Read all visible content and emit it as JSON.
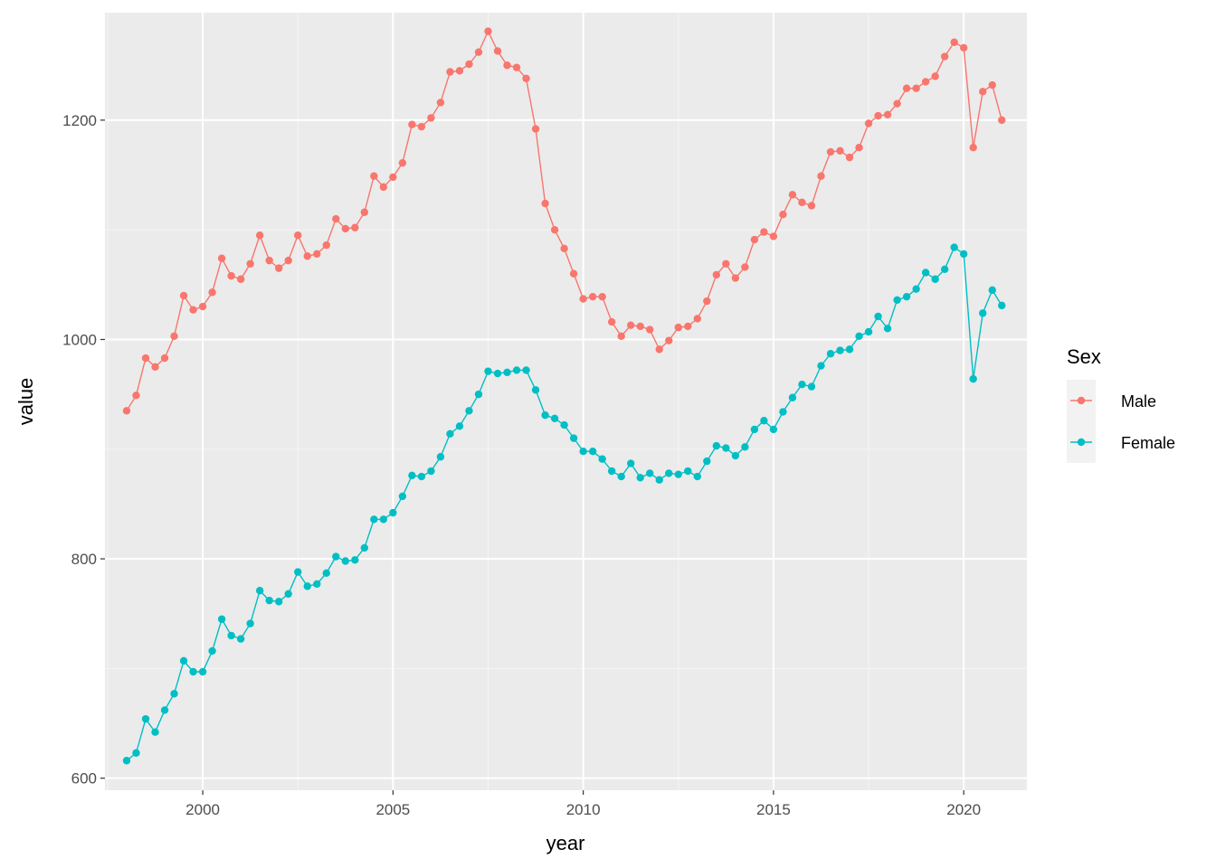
{
  "colors": {
    "panel_background": "#ebebeb",
    "grid_major": "#ffffff",
    "grid_minor": "#f5f5f5",
    "male": "#f8766d",
    "female": "#00bfc4"
  },
  "chart_data": {
    "type": "line",
    "title": "",
    "xlabel": "year",
    "ylabel": "value",
    "xlim": [
      1997.43,
      2021.66
    ],
    "ylim": [
      589,
      1298
    ],
    "x_ticks": [
      2000,
      2005,
      2010,
      2015,
      2020
    ],
    "x_tick_labels": [
      "2000",
      "2005",
      "2010",
      "2015",
      "2020"
    ],
    "y_ticks": [
      600,
      800,
      1000,
      1200
    ],
    "y_tick_labels": [
      "600",
      "800",
      "1000",
      "1200"
    ],
    "grid": true,
    "markers": true,
    "legend": {
      "title": "Sex",
      "position": "right",
      "labels": [
        "Male",
        "Female"
      ]
    },
    "x": [
      1998,
      1998.25,
      1998.5,
      1998.75,
      1999,
      1999.25,
      1999.5,
      1999.75,
      2000,
      2000.25,
      2000.5,
      2000.75,
      2001,
      2001.25,
      2001.5,
      2001.75,
      2002,
      2002.25,
      2002.5,
      2002.75,
      2003,
      2003.25,
      2003.5,
      2003.75,
      2004,
      2004.25,
      2004.5,
      2004.75,
      2005,
      2005.25,
      2005.5,
      2005.75,
      2006,
      2006.25,
      2006.5,
      2006.75,
      2007,
      2007.25,
      2007.5,
      2007.75,
      2008,
      2008.25,
      2008.5,
      2008.75,
      2009,
      2009.25,
      2009.5,
      2009.75,
      2010,
      2010.25,
      2010.5,
      2010.75,
      2011,
      2011.25,
      2011.5,
      2011.75,
      2012,
      2012.25,
      2012.5,
      2012.75,
      2013,
      2013.25,
      2013.5,
      2013.75,
      2014,
      2014.25,
      2014.5,
      2014.75,
      2015,
      2015.25,
      2015.5,
      2015.75,
      2016,
      2016.25,
      2016.5,
      2016.75,
      2017,
      2017.25,
      2017.5,
      2017.75,
      2018,
      2018.25,
      2018.5,
      2018.75,
      2019,
      2019.25,
      2019.5,
      2019.75,
      2020,
      2020.25,
      2020.5,
      2020.75,
      2021
    ],
    "series": [
      {
        "name": "Male",
        "color": "#f8766d",
        "values": [
          935,
          949,
          983,
          975,
          983,
          1003,
          1040,
          1027,
          1030,
          1043,
          1074,
          1058,
          1055,
          1069,
          1095,
          1072,
          1065,
          1072,
          1095,
          1076,
          1078,
          1086,
          1110,
          1101,
          1102,
          1116,
          1149,
          1139,
          1148,
          1161,
          1196,
          1194,
          1202,
          1216,
          1244,
          1245,
          1251,
          1262,
          1281,
          1263,
          1250,
          1248,
          1238,
          1192,
          1124,
          1100,
          1083,
          1060,
          1037,
          1039,
          1039,
          1016,
          1003,
          1013,
          1012,
          1009,
          991,
          999,
          1011,
          1012,
          1019,
          1035,
          1059,
          1069,
          1056,
          1066,
          1091,
          1098,
          1094,
          1114,
          1132,
          1125,
          1122,
          1149,
          1171,
          1172,
          1166,
          1175,
          1197,
          1204,
          1205,
          1215,
          1229,
          1229,
          1235,
          1240,
          1258,
          1271,
          1266,
          1175,
          1226,
          1232,
          1200
        ]
      },
      {
        "name": "Female",
        "color": "#00bfc4",
        "values": [
          616,
          623,
          654,
          642,
          662,
          677,
          707,
          697,
          697,
          716,
          745,
          730,
          727,
          741,
          771,
          762,
          761,
          768,
          788,
          775,
          777,
          787,
          802,
          798,
          799,
          810,
          836,
          836,
          842,
          857,
          876,
          875,
          880,
          893,
          914,
          921,
          935,
          950,
          971,
          969,
          970,
          972,
          972,
          954,
          931,
          928,
          922,
          910,
          898,
          898,
          891,
          880,
          875,
          887,
          874,
          878,
          872,
          878,
          877,
          880,
          875,
          889,
          903,
          901,
          894,
          902,
          918,
          926,
          918,
          934,
          947,
          959,
          957,
          976,
          987,
          990,
          991,
          1003,
          1007,
          1021,
          1010,
          1036,
          1039,
          1046,
          1061,
          1055,
          1064,
          1084,
          1078,
          964,
          1024,
          1045,
          1031
        ]
      }
    ]
  }
}
